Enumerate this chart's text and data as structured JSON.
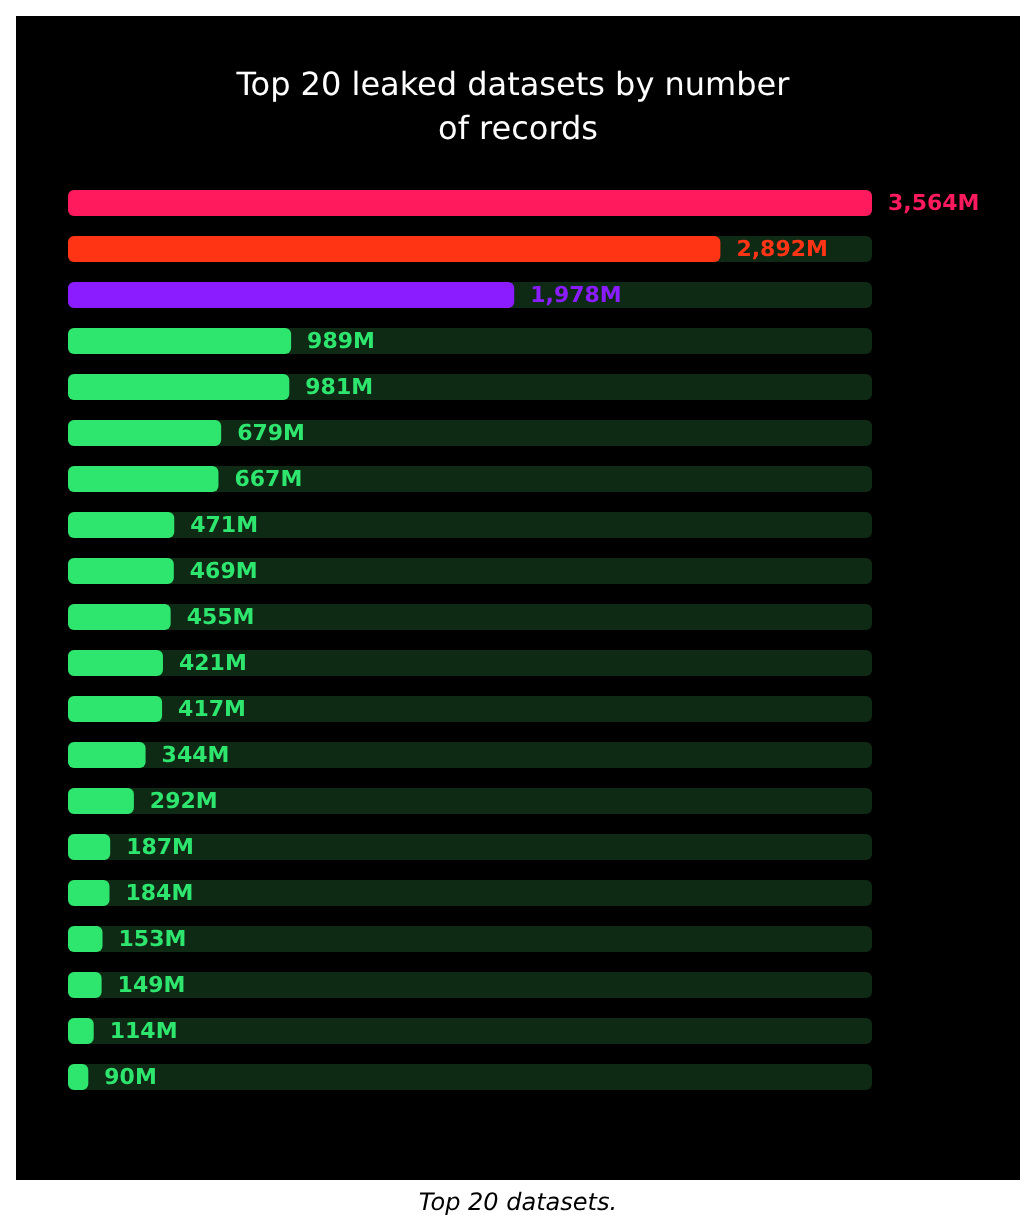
{
  "chart_data": {
    "type": "bar",
    "orientation": "horizontal",
    "title": "Top 20 leaked datasets by number of records",
    "categories": [
      null,
      null,
      null,
      null,
      null,
      null,
      null,
      null,
      null,
      null,
      null,
      null,
      null,
      null,
      null,
      null,
      null,
      null,
      null,
      null
    ],
    "values": [
      3564,
      2892,
      1978,
      989,
      981,
      679,
      667,
      471,
      469,
      455,
      421,
      417,
      344,
      292,
      187,
      184,
      153,
      149,
      114,
      90
    ],
    "value_labels": [
      "3,564M",
      "2,892M",
      "1,978M",
      "989M",
      "981M",
      "679M",
      "667M",
      "471M",
      "469M",
      "455M",
      "421M",
      "417M",
      "344M",
      "292M",
      "187M",
      "184M",
      "153M",
      "149M",
      "114M",
      "90M"
    ],
    "colors": [
      "#ff1a5e",
      "#ff3414",
      "#8a1cff",
      "#2ee66e",
      "#2ee66e",
      "#2ee66e",
      "#2ee66e",
      "#2ee66e",
      "#2ee66e",
      "#2ee66e",
      "#2ee66e",
      "#2ee66e",
      "#2ee66e",
      "#2ee66e",
      "#2ee66e",
      "#2ee66e",
      "#2ee66e",
      "#2ee66e",
      "#2ee66e",
      "#2ee66e"
    ],
    "annotations": [
      "Top 20 datasets."
    ]
  }
}
